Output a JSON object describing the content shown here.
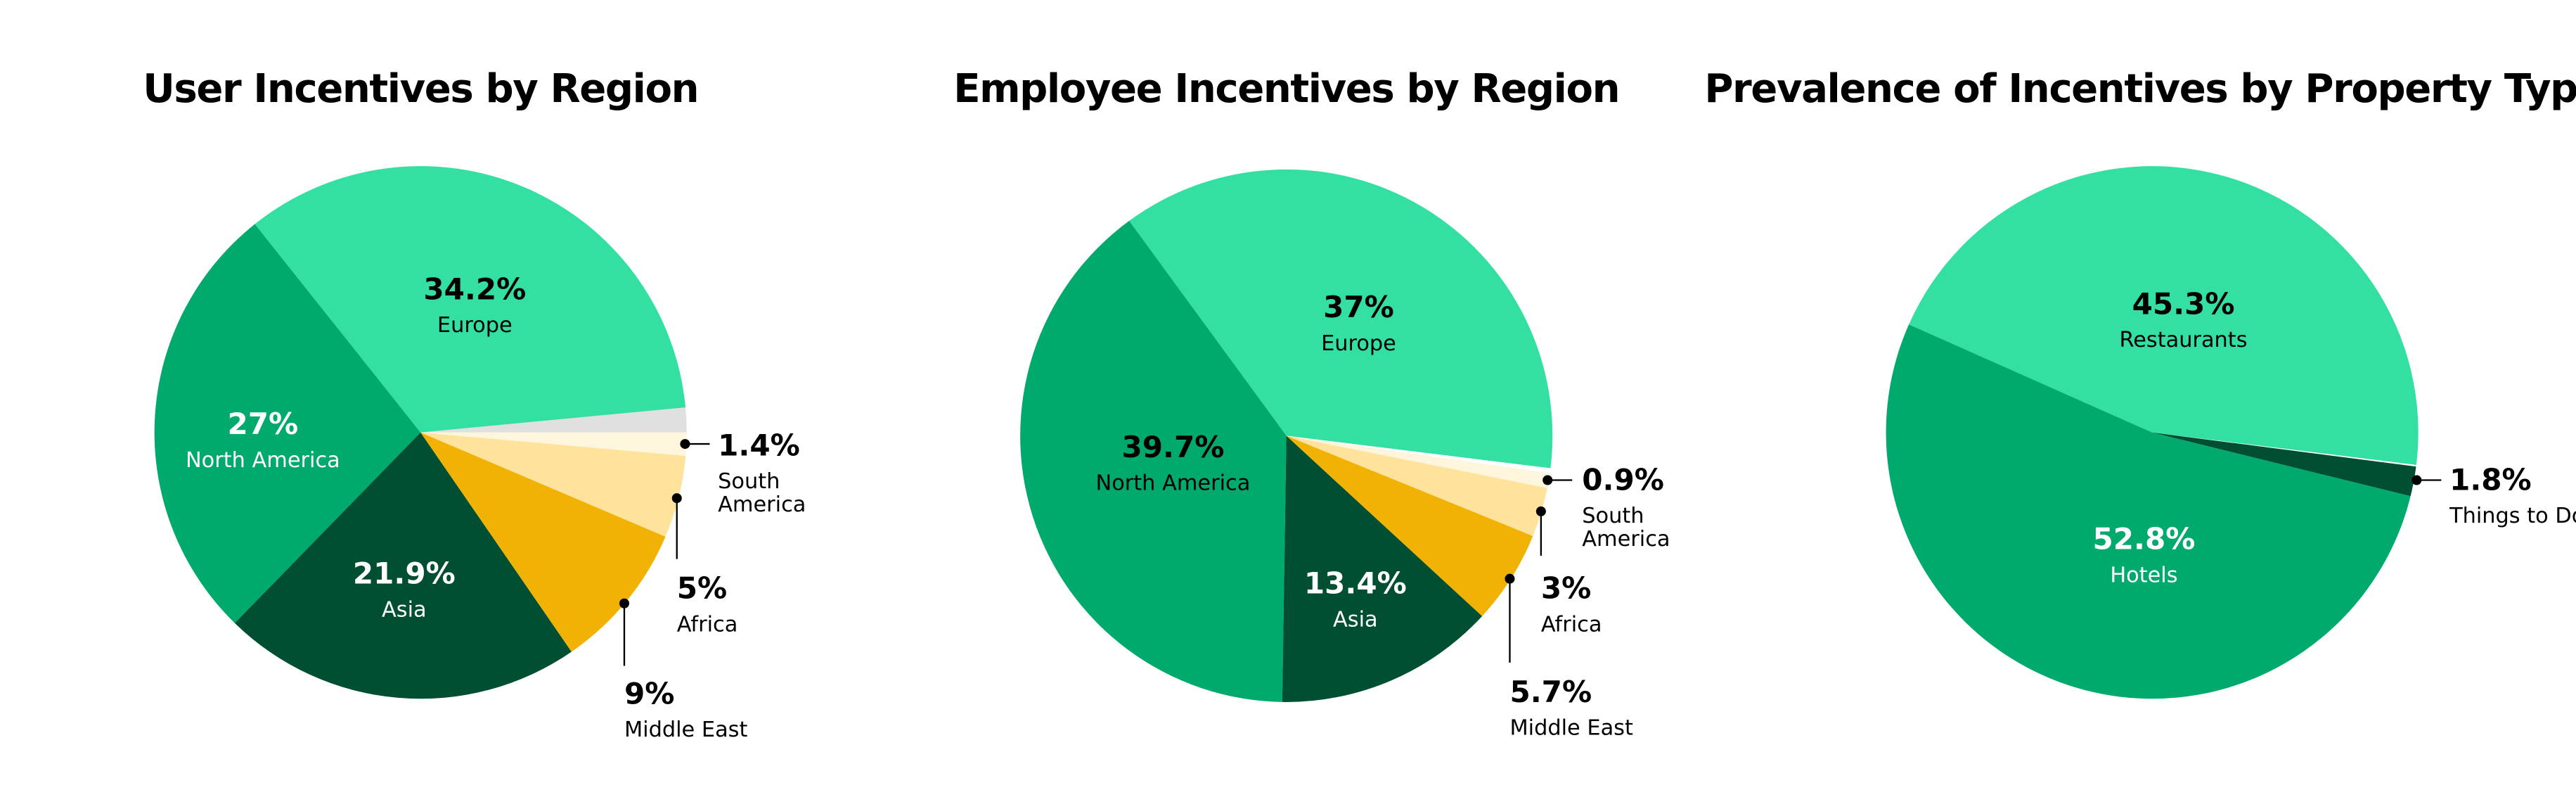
{
  "chart_data": [
    {
      "type": "pie",
      "title": "User Incentives by Region",
      "categories": [
        null,
        "Europe",
        "North America",
        "Asia",
        "Middle East",
        "Africa",
        "South America"
      ],
      "values": [
        1.5,
        34.2,
        27,
        21.9,
        9,
        5,
        1.4
      ],
      "value_labels": [
        null,
        "34.2%",
        "27%",
        "21.9%",
        "9%",
        "5%",
        "1.4%"
      ],
      "colors": [
        "#e0e0e0",
        "#34e0a1",
        "#00aa6c",
        "#004f32",
        "#f2b203",
        "#ffe39c",
        "#fdf5dc"
      ],
      "label_colors": [
        null,
        "#000000",
        "#ffffff",
        "#ffffff",
        "#000000",
        "#000000",
        "#000000"
      ]
    },
    {
      "type": "pie",
      "title": "Employee Incentives by Region",
      "categories": [
        "Europe",
        "North America",
        "Asia",
        "Middle East",
        "Africa",
        "South America"
      ],
      "values": [
        37,
        39.7,
        13.4,
        5.7,
        3,
        0.9
      ],
      "value_labels": [
        "37%",
        "39.7%",
        "13.4%",
        "5.7%",
        "3%",
        "0.9%"
      ],
      "colors": [
        "#34e0a1",
        "#00aa6c",
        "#004f32",
        "#f2b203",
        "#ffe39c",
        "#fdf5dc"
      ],
      "label_colors": [
        "#000000",
        "#000000",
        "#ffffff",
        "#000000",
        "#000000",
        "#000000"
      ]
    },
    {
      "type": "pie",
      "title": "Prevalence of Incentives by Property Type",
      "categories": [
        "Restaurants",
        "Hotels",
        "Things to Do"
      ],
      "values": [
        45.3,
        52.8,
        1.8
      ],
      "value_labels": [
        "45.3%",
        "52.8%",
        "1.8%"
      ],
      "colors": [
        "#34e0a1",
        "#00aa6c",
        "#004f32"
      ],
      "label_colors": [
        "#000000",
        "#ffffff",
        "#000000"
      ]
    }
  ]
}
